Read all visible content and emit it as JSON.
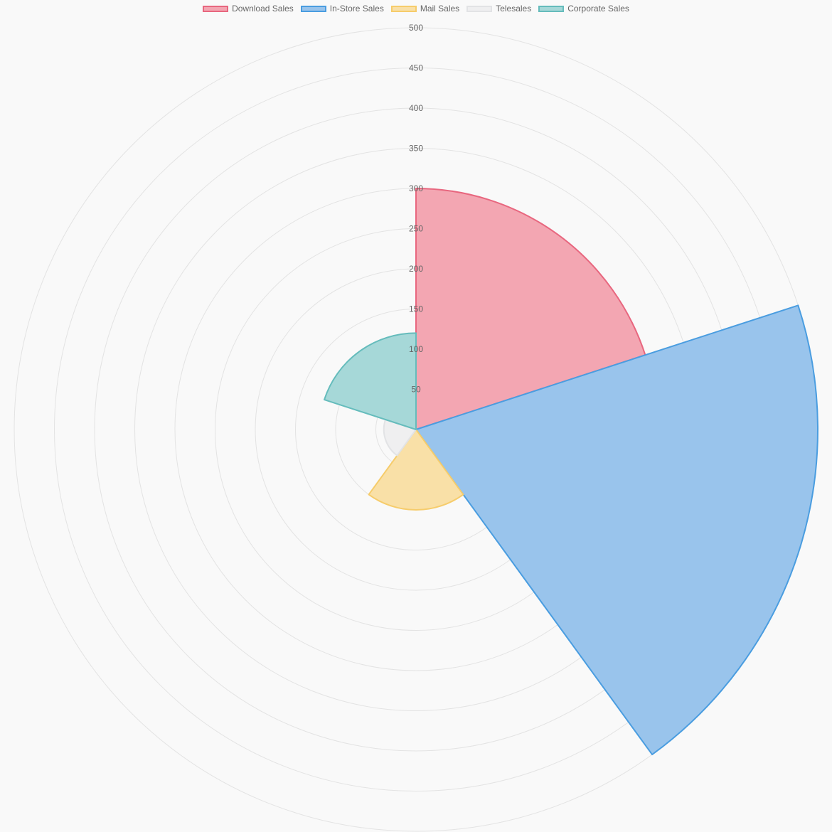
{
  "chart_data": {
    "type": "polarArea",
    "categories": [
      "Download Sales",
      "In-Store Sales",
      "Mail Sales",
      "Telesales",
      "Corporate Sales"
    ],
    "values": [
      300,
      500,
      100,
      40,
      120
    ],
    "colors": {
      "fill": [
        "#f3a6b2",
        "#99c4ec",
        "#f9e0a7",
        "#efeff0",
        "#a6d8d8"
      ],
      "border": [
        "#e8677f",
        "#4a9de0",
        "#f6cc6b",
        "#e2e3e5",
        "#65bcbc"
      ]
    },
    "r_ticks": [
      50,
      100,
      150,
      200,
      250,
      300,
      350,
      400,
      450,
      500
    ],
    "r_range": [
      0,
      500
    ],
    "legend_position": "top",
    "grid": true
  }
}
